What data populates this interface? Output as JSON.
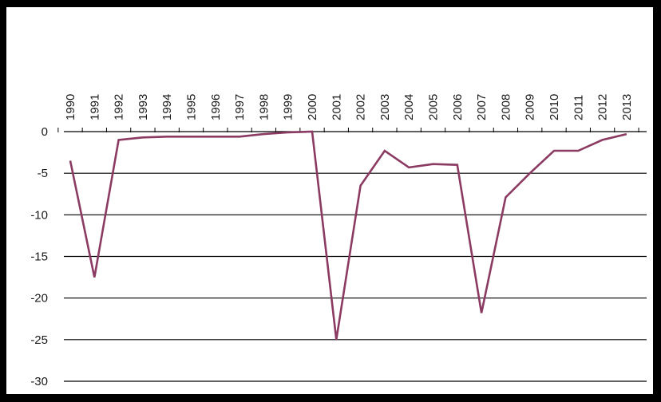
{
  "chart_data": {
    "type": "line",
    "title": "",
    "xlabel": "",
    "ylabel": "",
    "categories": [
      "1990",
      "1991",
      "1992",
      "1993",
      "1994",
      "1995",
      "1996",
      "1997",
      "1998",
      "1999",
      "2000",
      "2001",
      "2002",
      "2003",
      "2004",
      "2005",
      "2006",
      "2007",
      "2008",
      "2009",
      "2010",
      "2011",
      "2012",
      "2013"
    ],
    "series": [
      {
        "values": [
          -3.5,
          -17.5,
          -1.0,
          -0.7,
          -0.6,
          -0.6,
          -0.6,
          -0.6,
          -0.3,
          -0.1,
          0,
          -25.0,
          -6.5,
          -2.3,
          -4.3,
          -3.9,
          -4.0,
          -21.8,
          -7.9,
          -5.0,
          -2.3,
          -2.3,
          -1.0,
          -0.3
        ],
        "color": "#8B3A62"
      }
    ],
    "y_ticks": [
      0,
      -5,
      -10,
      -15,
      -20,
      -25,
      -30
    ],
    "y_tick_labels": [
      "0",
      "-5",
      "-10",
      "-15",
      "-20",
      "-25",
      "-30"
    ],
    "ylim": [
      -30,
      0
    ],
    "x_axis_position": "top",
    "x_label_orientation": "vertical",
    "grid": "horizontal",
    "legend": "none",
    "colors": {
      "line": "#8B3A62",
      "grid": "#000000",
      "frame": "#000000",
      "background": "#ffffff"
    }
  }
}
